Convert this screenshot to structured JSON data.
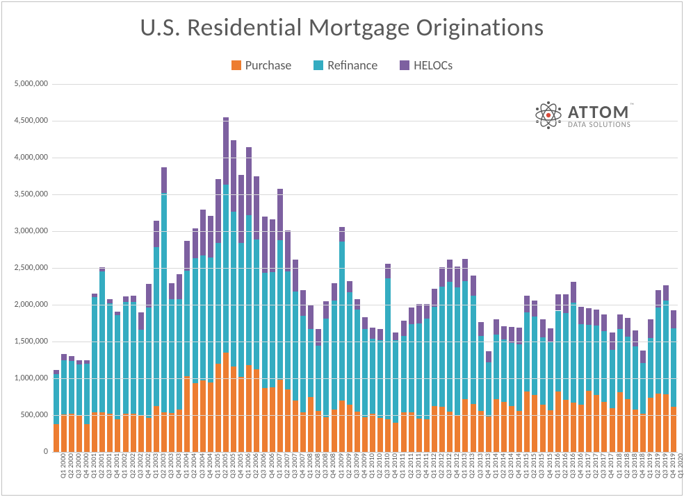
{
  "title": "U.S. Residential Mortgage Originations",
  "legend": {
    "items": [
      {
        "label": "Purchase",
        "color": "#ed7d31"
      },
      {
        "label": "Refinance",
        "color": "#34acc1"
      },
      {
        "label": "HELOCs",
        "color": "#7d60a0"
      }
    ]
  },
  "logo": {
    "main": "ATTOM",
    "sub": "DATA SOLUTIONS",
    "tm": "™"
  },
  "chart": {
    "type": "stacked-bar",
    "background_color": "#ffffff",
    "grid_color": "#d9d9d9",
    "text_color": "#595959",
    "title_fontsize": 36,
    "legend_fontsize": 18,
    "axis_label_fontsize": 12,
    "x_label_fontsize": 10.5,
    "x_label_rotation": -90,
    "bar_fill_ratio": 0.72,
    "y": {
      "min": 0,
      "max": 5000000,
      "tick_step": 500000,
      "ticks": [
        0,
        500000,
        1000000,
        1500000,
        2000000,
        2500000,
        3000000,
        3500000,
        4000000,
        4500000,
        5000000
      ],
      "tick_labels": [
        "0",
        "500,000",
        "1,000,000",
        "1,500,000",
        "2,000,000",
        "2,500,000",
        "3,000,000",
        "3,500,000",
        "4,000,000",
        "4,500,000",
        "5,000,000"
      ]
    },
    "series_order": [
      "purchase",
      "refinance",
      "helocs"
    ],
    "colors": {
      "purchase": "#ed7d31",
      "refinance": "#34acc1",
      "helocs": "#7d60a0"
    },
    "categories": [
      "Q1 2000",
      "Q2 2000",
      "Q3 2000",
      "Q4 2000",
      "Q1 2001",
      "Q2 2001",
      "Q3 2001",
      "Q4 2001",
      "Q1 2002",
      "Q2 2002",
      "Q3 2002",
      "Q4 2002",
      "Q1 2003",
      "Q2 2003",
      "Q3 2003",
      "Q4 2003",
      "Q1 2004",
      "Q2 2004",
      "Q3 2004",
      "Q4 2004",
      "Q1 2005",
      "Q2 2005",
      "Q3 2005",
      "Q4 2005",
      "Q1 2006",
      "Q2 2006",
      "Q3 2006",
      "Q4 2006",
      "Q1 2007",
      "Q2 2007",
      "Q3 2007",
      "Q4 2007",
      "Q1 2008",
      "Q2 2008",
      "Q3 2008",
      "Q4 2008",
      "Q1 2009",
      "Q2 2009",
      "Q3 2009",
      "Q4 2009",
      "Q1 2010",
      "Q2 2010",
      "Q3 2010",
      "Q4 2010",
      "Q1 2011",
      "Q2 2011",
      "Q3 2011",
      "Q4 2011",
      "Q1 2012",
      "Q2 2012",
      "Q3 2012",
      "Q4 2012",
      "Q1 2013",
      "Q2 2013",
      "Q3 2013",
      "Q4 2013",
      "Q1 2014",
      "Q2 2014",
      "Q3 2014",
      "Q4 2014",
      "Q1 2015",
      "Q2 2015",
      "Q3 2015",
      "Q4 2015",
      "Q1 2016",
      "Q2 2016",
      "Q3 2016",
      "Q4 2016",
      "Q1 2017",
      "Q2 2017",
      "Q3 2017",
      "Q4 2017",
      "Q1 2018",
      "Q2 2018",
      "Q3 2018",
      "Q4 2018",
      "Q1 2019",
      "Q2 2019",
      "Q3 2019",
      "Q4 2019",
      "Q1 2020"
    ],
    "data": {
      "purchase": [
        380000,
        510000,
        520000,
        490000,
        380000,
        540000,
        540000,
        520000,
        440000,
        520000,
        520000,
        500000,
        460000,
        620000,
        540000,
        530000,
        580000,
        1030000,
        930000,
        970000,
        940000,
        1200000,
        1350000,
        1160000,
        1020000,
        1180000,
        1120000,
        870000,
        880000,
        980000,
        850000,
        700000,
        540000,
        750000,
        560000,
        470000,
        580000,
        700000,
        640000,
        550000,
        470000,
        520000,
        460000,
        440000,
        400000,
        540000,
        540000,
        450000,
        440000,
        620000,
        610000,
        550000,
        490000,
        720000,
        650000,
        560000,
        480000,
        720000,
        680000,
        620000,
        560000,
        820000,
        770000,
        640000,
        570000,
        820000,
        710000,
        670000,
        640000,
        830000,
        770000,
        680000,
        590000,
        810000,
        720000,
        580000,
        520000,
        740000,
        790000,
        780000,
        610000
      ],
      "refinance": [
        680000,
        740000,
        720000,
        700000,
        820000,
        1560000,
        1910000,
        1500000,
        1420000,
        1520000,
        1520000,
        1160000,
        1500000,
        2160000,
        2980000,
        1550000,
        1500000,
        1430000,
        1700000,
        1700000,
        1700000,
        1640000,
        2280000,
        2100000,
        1820000,
        2040000,
        1770000,
        1560000,
        1560000,
        1900000,
        1600000,
        1480000,
        1310000,
        920000,
        880000,
        1340000,
        1480000,
        2160000,
        1530000,
        1380000,
        1200000,
        1020000,
        1060000,
        1920000,
        1120000,
        1040000,
        1200000,
        1300000,
        1370000,
        1350000,
        1640000,
        1760000,
        1750000,
        1600000,
        1470000,
        1020000,
        740000,
        870000,
        850000,
        860000,
        900000,
        1080000,
        1070000,
        920000,
        920000,
        1100000,
        1180000,
        1360000,
        1100000,
        900000,
        950000,
        960000,
        800000,
        860000,
        850000,
        850000,
        690000,
        810000,
        1170000,
        1280000,
        1070000
      ],
      "helocs": [
        50000,
        80000,
        60000,
        60000,
        50000,
        50000,
        60000,
        60000,
        50000,
        70000,
        80000,
        240000,
        320000,
        360000,
        350000,
        210000,
        340000,
        410000,
        410000,
        620000,
        570000,
        870000,
        920000,
        980000,
        920000,
        920000,
        860000,
        770000,
        720000,
        700000,
        560000,
        430000,
        350000,
        320000,
        230000,
        240000,
        230000,
        200000,
        150000,
        150000,
        160000,
        150000,
        150000,
        200000,
        100000,
        200000,
        220000,
        260000,
        200000,
        250000,
        260000,
        300000,
        280000,
        300000,
        280000,
        180000,
        150000,
        210000,
        180000,
        220000,
        230000,
        220000,
        220000,
        240000,
        190000,
        220000,
        250000,
        280000,
        230000,
        220000,
        210000,
        230000,
        230000,
        200000,
        250000,
        220000,
        170000,
        250000,
        240000,
        200000,
        240000
      ]
    }
  }
}
